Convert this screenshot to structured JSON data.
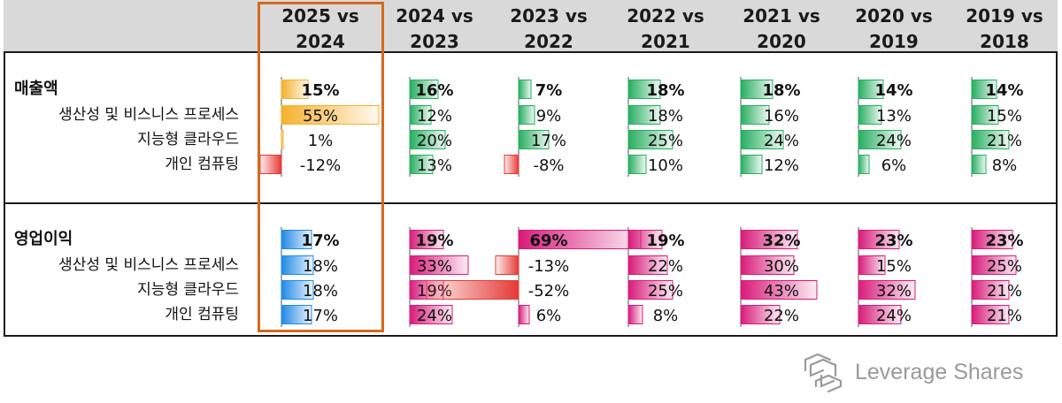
{
  "chart_data": {
    "type": "table",
    "columns": [
      "2025 vs\n2024",
      "2024 vs\n2023",
      "2023 vs\n2022",
      "2022 vs\n2021",
      "2021 vs\n2020",
      "2020 vs\n2019",
      "2019 vs\n2018"
    ],
    "sections": [
      {
        "name": "revenue",
        "rows": [
          {
            "label": "매출액",
            "bold": true,
            "values": [
              15,
              16,
              7,
              18,
              18,
              14,
              14
            ]
          },
          {
            "label": "생산성 및 비스니스 프로세스",
            "bold": false,
            "values": [
              55,
              12,
              9,
              18,
              16,
              13,
              15
            ]
          },
          {
            "label": "지능형 클라우드",
            "bold": false,
            "values": [
              1,
              20,
              17,
              25,
              24,
              24,
              21
            ]
          },
          {
            "label": "개인 컴퓨팅",
            "bold": false,
            "values": [
              -12,
              13,
              -8,
              10,
              12,
              6,
              8
            ]
          }
        ]
      },
      {
        "name": "operating_income",
        "rows": [
          {
            "label": "영업이익",
            "bold": true,
            "values": [
              17,
              19,
              69,
              19,
              32,
              23,
              23
            ]
          },
          {
            "label": "생산성 및 비스니스 프로세스",
            "bold": false,
            "values": [
              18,
              33,
              -13,
              22,
              30,
              15,
              25
            ]
          },
          {
            "label": "지능형 클라우드",
            "bold": false,
            "values": [
              18,
              19,
              -52,
              25,
              43,
              32,
              21
            ]
          },
          {
            "label": "개인 컴퓨팅",
            "bold": false,
            "values": [
              17,
              24,
              6,
              8,
              22,
              24,
              21
            ]
          }
        ]
      }
    ],
    "unit": "%",
    "highlight_column": 0,
    "colors": {
      "revenue_2025": "#f5b12e",
      "income_2025": "#1e88e5",
      "revenue_positive": "#27ae60",
      "income_positive": "#d81b7a",
      "negative": "#e53935",
      "highlight_border": "#d46a1e",
      "header_bg": "#d9d9d9"
    }
  },
  "brand": {
    "name": "Leverage Shares"
  }
}
